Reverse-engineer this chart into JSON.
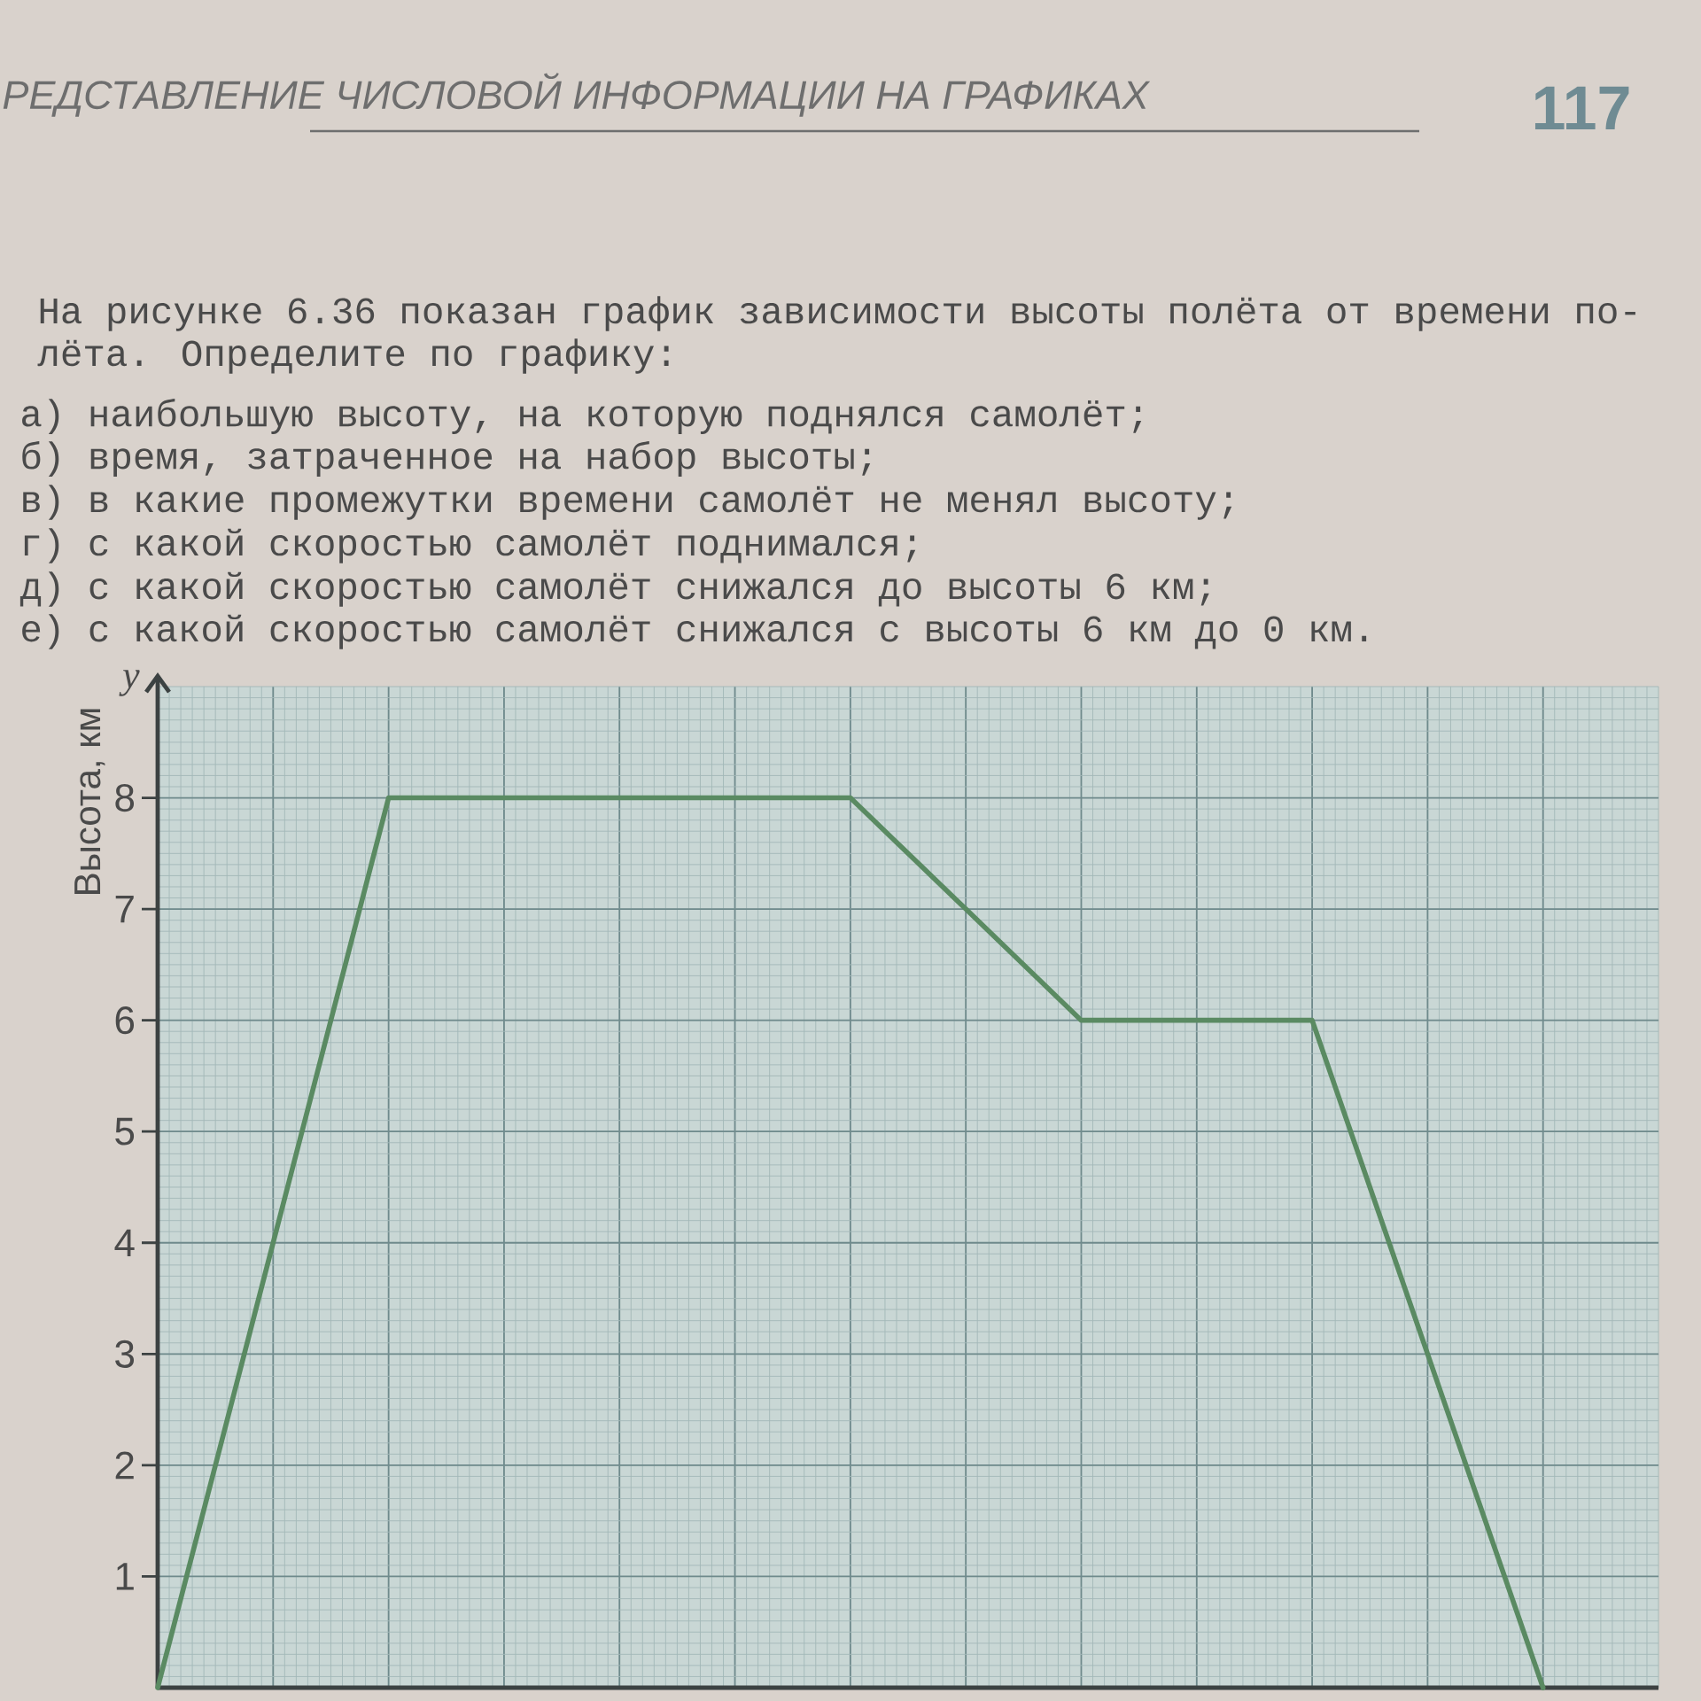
{
  "chart_data": {
    "type": "line",
    "annotations": [
      "РЕДСТАВЛЕНИЕ ЧИСЛОВОЙ ИНФОРМАЦИИ НА ГРАФИКАХ",
      "117",
      "На рисунке 6.36 показан график зависимости высоты полёта от времени по-",
      "лёта. Определите по графику:",
      "а) наибольшую высоту, на которую поднялся самолёт;",
      "б) время, затраченное на набор высоты;",
      "в) в какие промежутки времени самолёт не менял высоту;",
      "г) с какой скоростью самолёт поднимался;",
      "д) с какой скоростью самолёт снижался до высоты 6 км;",
      "е) с какой скоростью самолёт снижался с высоты 6 км до 0 км.",
      "y"
    ],
    "ylabel": "Высота, км",
    "categories": [
      null,
      null,
      null,
      null,
      null,
      null,
      null,
      null,
      null,
      null,
      null,
      null,
      null
    ],
    "values": [
      0,
      4,
      8,
      8,
      8,
      8,
      8,
      7,
      6,
      6,
      6,
      3,
      0
    ],
    "color": "#5a8a62",
    "ylim": [
      0,
      9
    ],
    "yticks": [
      1,
      2,
      3,
      4,
      5,
      6,
      7,
      8
    ],
    "grid": true,
    "tick_labels": "y",
    "line_style": "solid"
  }
}
